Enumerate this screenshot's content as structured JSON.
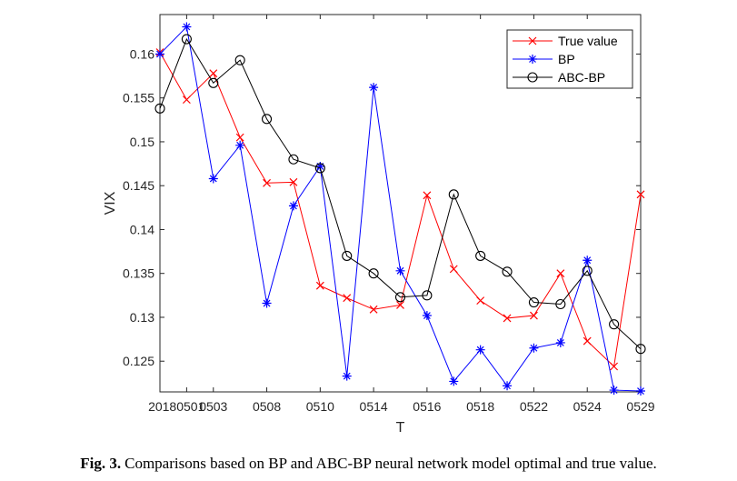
{
  "chart_data": {
    "type": "line",
    "xlabel": "T",
    "ylabel": "VIX",
    "ylim": [
      0.1215,
      0.1645
    ],
    "xlim": [
      1,
      17
    ],
    "x_tick_labels": [
      {
        "x": 1,
        "label": "20180501"
      },
      {
        "x": 2,
        "label": "0503"
      },
      {
        "x": 4,
        "label": "0508"
      },
      {
        "x": 6,
        "label": "0510"
      },
      {
        "x": 8,
        "label": "0514"
      },
      {
        "x": 10,
        "label": "0516"
      },
      {
        "x": 12,
        "label": "0518"
      },
      {
        "x": 14,
        "label": "0522"
      },
      {
        "x": 16,
        "label": "0524"
      },
      {
        "x": 18,
        "label": "0529"
      }
    ],
    "y_ticks": [
      0.125,
      0.13,
      0.135,
      0.14,
      0.145,
      0.15,
      0.155,
      0.16
    ],
    "y_tick_labels": [
      "0.125",
      "0.13",
      "0.135",
      "0.14",
      "0.145",
      "0.15",
      "0.155",
      "0.16"
    ],
    "x": [
      0,
      0.5,
      1,
      1.5,
      2,
      2.5,
      3,
      3.5,
      4,
      4.5,
      5,
      5.5,
      6,
      6.5,
      7,
      7.5,
      8,
      8.5,
      9
    ],
    "series": [
      {
        "name": "True value",
        "color": "#ff0000",
        "marker": "x",
        "values": [
          0.1602,
          0.1548,
          0.1578,
          0.1505,
          0.1453,
          0.1454,
          0.1336,
          0.1322,
          0.1309,
          0.1314,
          0.1439,
          0.1355,
          0.1319,
          0.1299,
          0.1302,
          0.135,
          0.1273,
          0.1244,
          0.144
        ]
      },
      {
        "name": "BP",
        "color": "#0000ff",
        "marker": "star",
        "values": [
          0.16,
          0.1631,
          0.1458,
          0.1496,
          0.1316,
          0.1427,
          0.1472,
          0.1233,
          0.1562,
          0.1353,
          0.1302,
          0.1227,
          0.1263,
          0.1222,
          0.1265,
          0.1271,
          0.1365,
          0.1217,
          0.1216
        ]
      },
      {
        "name": "ABC-BP",
        "color": "#000000",
        "marker": "circle",
        "values": [
          0.1538,
          0.1617,
          0.1567,
          0.1593,
          0.1526,
          0.148,
          0.147,
          0.137,
          0.135,
          0.1323,
          0.1325,
          0.144,
          0.137,
          0.1352,
          0.1317,
          0.1315,
          0.1353,
          0.1292,
          0.1264
        ]
      }
    ],
    "legend": "top-right",
    "grid": false
  },
  "caption": {
    "label": "Fig. 3.",
    "text": "Comparisons based on BP and ABC-BP neural network model optimal and true value."
  }
}
